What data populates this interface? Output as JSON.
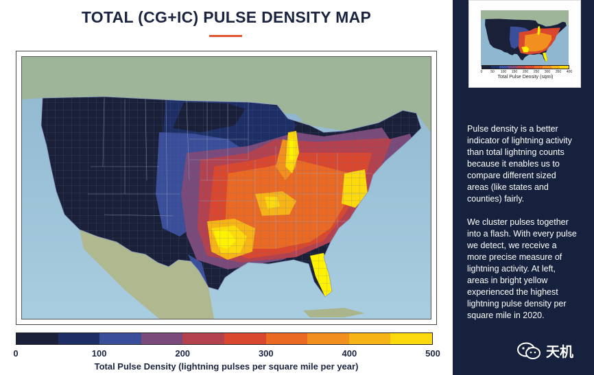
{
  "title": "TOTAL (CG+IC) PULSE DENSITY MAP",
  "legend": {
    "colors": [
      "#1b2039",
      "#1e2f66",
      "#3a4e9a",
      "#7a4a7a",
      "#b3414e",
      "#d9482e",
      "#ea6a23",
      "#f1901f",
      "#f7b416",
      "#fbd90c",
      "#fff200"
    ],
    "ticks": [
      "0",
      "100",
      "200",
      "300",
      "400",
      "500"
    ],
    "caption": "Total Pulse Density (lightning pulses per square mile per year)"
  },
  "thumbnail": {
    "ticks": [
      "0",
      "50",
      "100",
      "150",
      "200",
      "250",
      "300",
      "350",
      "400"
    ],
    "caption": "Total Pulse Density (sqmi)"
  },
  "sidebar": {
    "paragraph1": "Pulse density is a better indicator of lightning activity than total lightning counts because it enables us to compare different sized areas (like states and counties) fairly.",
    "paragraph2": "We cluster pulses together into a flash. With every pulse we detect, we receive a more precise measure of lightning activity. At left, areas in bright yellow experienced the highest lightning pulse density per square mile in 2020.",
    "watermark": "天机"
  },
  "map": {
    "subject": "Contiguous United States county-level lightning pulse density, 2020",
    "year": "2020"
  }
}
